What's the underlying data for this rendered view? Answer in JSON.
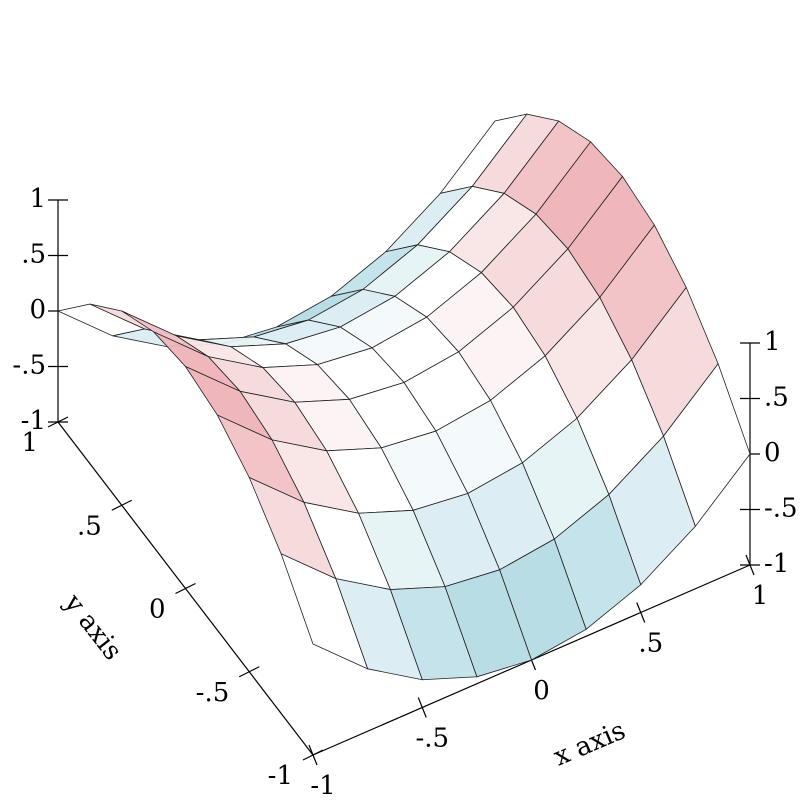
{
  "chart_data": {
    "type": "surface",
    "x_label": "x axis",
    "y_label": "y axis",
    "x": [
      -1,
      -0.75,
      -0.5,
      -0.25,
      0,
      0.25,
      0.5,
      0.75,
      1
    ],
    "y": [
      -1,
      -0.75,
      -0.5,
      -0.25,
      0,
      0.25,
      0.5,
      0.75,
      1
    ],
    "z": [
      [
        0,
        0.4375,
        0.75,
        0.9375,
        1,
        0.9375,
        0.75,
        0.4375,
        0
      ],
      [
        -0.4375,
        0,
        0.3125,
        0.5,
        0.5625,
        0.5,
        0.3125,
        0,
        -0.4375
      ],
      [
        -0.75,
        -0.3125,
        0,
        0.1875,
        0.25,
        0.1875,
        0,
        -0.3125,
        -0.75
      ],
      [
        -0.9375,
        -0.5,
        -0.1875,
        0,
        0.0625,
        0,
        -0.1875,
        -0.5,
        -0.9375
      ],
      [
        -1,
        -0.5625,
        -0.25,
        -0.0625,
        0,
        -0.0625,
        -0.25,
        -0.5625,
        -1
      ],
      [
        -0.9375,
        -0.5,
        -0.1875,
        0,
        0.0625,
        0,
        -0.1875,
        -0.5,
        -0.9375
      ],
      [
        -0.75,
        -0.3125,
        0,
        0.1875,
        0.25,
        0.1875,
        0,
        -0.3125,
        -0.75
      ],
      [
        -0.4375,
        0,
        0.3125,
        0.5,
        0.5625,
        0.5,
        0.3125,
        0,
        -0.4375
      ],
      [
        0,
        0.4375,
        0.75,
        0.9375,
        1,
        0.9375,
        0.75,
        0.4375,
        0
      ]
    ],
    "positive_color": "#e89aa0",
    "negative_color": "#9ccfdb",
    "xlim": [
      -1,
      1
    ],
    "ylim": [
      -1,
      1
    ],
    "zlim": [
      -1,
      1
    ],
    "xticks": [
      -1,
      {
        "value": -0.5,
        "label": "-.5"
      },
      0,
      {
        "value": 0.5,
        "label": ".5"
      },
      1
    ],
    "yticks": [
      -1,
      {
        "value": -0.5,
        "label": "-.5"
      },
      0,
      {
        "value": 0.5,
        "label": ".5"
      },
      1
    ],
    "zticks": [
      -1,
      {
        "value": -0.5,
        "label": "-.5"
      },
      0,
      {
        "value": 0.5,
        "label": ".5"
      },
      1
    ]
  }
}
